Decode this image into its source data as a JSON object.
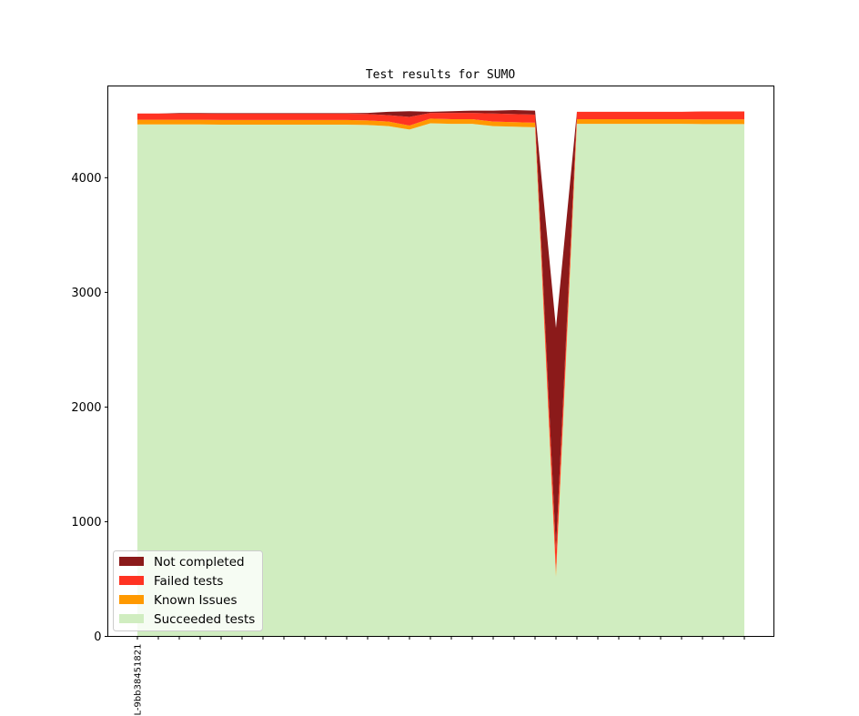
{
  "chart_data": {
    "type": "area",
    "title": "Test results for SUMO",
    "xlabel": "",
    "ylabel": "",
    "ylim": [
      0,
      4800
    ],
    "yticks": [
      0,
      1000,
      2000,
      3000,
      4000
    ],
    "x_tick_labels": [
      "L-9bb38451821"
    ],
    "n_points": 30,
    "stacked": true,
    "legend_location": "lower-left",
    "series": [
      {
        "name": "Succeeded tests",
        "color": "#d0edc0",
        "values": [
          4465,
          4465,
          4465,
          4465,
          4463,
          4463,
          4463,
          4463,
          4463,
          4463,
          4463,
          4460,
          4450,
          4420,
          4475,
          4470,
          4470,
          4450,
          4445,
          4440,
          520,
          4470,
          4470,
          4470,
          4470,
          4470,
          4470,
          4468,
          4468,
          4468
        ]
      },
      {
        "name": "Known Issues",
        "color": "#ff9900",
        "values": [
          40,
          40,
          40,
          40,
          40,
          40,
          40,
          40,
          40,
          40,
          40,
          40,
          40,
          35,
          40,
          40,
          40,
          40,
          40,
          40,
          40,
          40,
          40,
          40,
          40,
          40,
          40,
          40,
          40,
          40
        ]
      },
      {
        "name": "Failed tests",
        "color": "#ff3322",
        "values": [
          55,
          55,
          55,
          55,
          55,
          55,
          55,
          55,
          55,
          55,
          55,
          55,
          55,
          75,
          50,
          55,
          55,
          70,
          70,
          70,
          200,
          65,
          65,
          65,
          65,
          65,
          65,
          70,
          70,
          70
        ]
      },
      {
        "name": "Not completed",
        "color": "#8b1a1a",
        "values": [
          0,
          0,
          5,
          5,
          5,
          5,
          5,
          5,
          5,
          5,
          5,
          10,
          30,
          50,
          10,
          15,
          20,
          25,
          35,
          35,
          1930,
          0,
          0,
          0,
          0,
          0,
          0,
          0,
          0,
          0
        ]
      }
    ]
  }
}
